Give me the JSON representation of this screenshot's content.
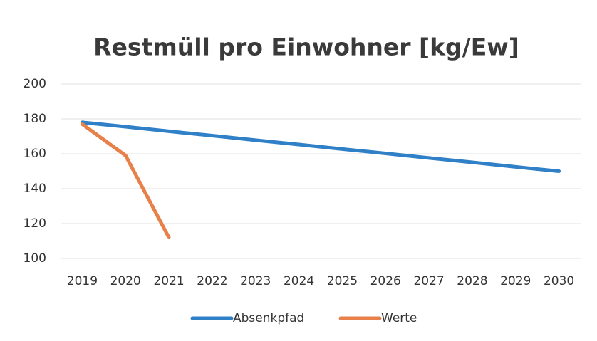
{
  "chart_data": {
    "type": "line",
    "title": "Restmüll pro Einwohner [kg/Ew]",
    "categories": [
      "2019",
      "2020",
      "2021",
      "2022",
      "2023",
      "2024",
      "2025",
      "2026",
      "2027",
      "2028",
      "2029",
      "2030"
    ],
    "series": [
      {
        "name": "Absenkpfad",
        "color": "#3080c8",
        "values": [
          178,
          175.5,
          172.9,
          170.4,
          167.8,
          165.3,
          162.7,
          160.2,
          157.6,
          155.1,
          152.5,
          150
        ]
      },
      {
        "name": "Werte",
        "color": "#e8804a",
        "values": [
          177,
          159,
          112,
          null,
          null,
          null,
          null,
          null,
          null,
          null,
          null,
          null
        ]
      }
    ],
    "ylim": [
      100,
      200
    ],
    "yticks": [
      100,
      120,
      140,
      160,
      180,
      200
    ],
    "grid": true,
    "legend": "bottom"
  }
}
